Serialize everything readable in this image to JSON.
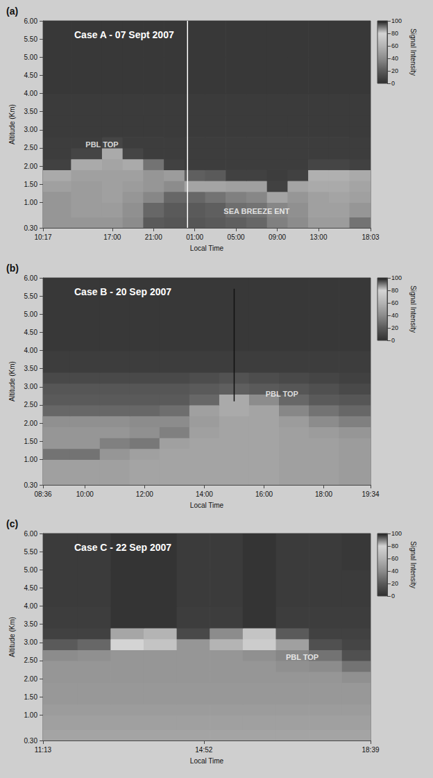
{
  "chart_data": [
    {
      "type": "heatmap",
      "panel_label": "(a)",
      "title": "Case A - 07 Sept 2007",
      "xlabel": "Local Time",
      "ylabel": "Altitude (Km)",
      "grid": false,
      "xlim": [
        10.2833,
        42.05
      ],
      "xticks": [
        {
          "value": 10.2833,
          "label": "10:17"
        },
        {
          "value": 17,
          "label": "17:00"
        },
        {
          "value": 21,
          "label": "21:00"
        },
        {
          "value": 25,
          "label": "01:00"
        },
        {
          "value": 29,
          "label": "05:00"
        },
        {
          "value": 33,
          "label": "09:00"
        },
        {
          "value": 37,
          "label": "13:00"
        },
        {
          "value": 42.05,
          "label": "18:03"
        }
      ],
      "ylim": [
        0.3,
        6.0
      ],
      "yticks": [
        {
          "value": 0.3,
          "label": "0.30"
        },
        {
          "value": 1,
          "label": "1.00"
        },
        {
          "value": 1.5,
          "label": "1.50"
        },
        {
          "value": 2,
          "label": "2.00"
        },
        {
          "value": 2.5,
          "label": "2.50"
        },
        {
          "value": 3,
          "label": "3.00"
        },
        {
          "value": 3.5,
          "label": "3.50"
        },
        {
          "value": 4,
          "label": "4.00"
        },
        {
          "value": 4.5,
          "label": "4.50"
        },
        {
          "value": 5,
          "label": "5.00"
        },
        {
          "value": 5.5,
          "label": "5.50"
        },
        {
          "value": 6,
          "label": "6.00"
        }
      ],
      "x_edges": [
        10.2833,
        13,
        16,
        18,
        20,
        22,
        24,
        26,
        28,
        30,
        32,
        34,
        36,
        38,
        40,
        42.05
      ],
      "y_edges": [
        0.3,
        0.6,
        1.0,
        1.3,
        1.6,
        1.9,
        2.2,
        2.5,
        2.8,
        3.1,
        3.4,
        4.0,
        5.0,
        6.0
      ],
      "cells": [
        [
          45,
          45,
          45,
          40,
          20,
          18,
          18,
          20,
          22,
          25,
          35,
          40,
          48,
          48,
          30
        ],
        [
          45,
          48,
          48,
          42,
          25,
          20,
          20,
          22,
          28,
          30,
          38,
          42,
          50,
          50,
          45
        ],
        [
          45,
          48,
          50,
          45,
          38,
          25,
          25,
          30,
          35,
          38,
          52,
          45,
          50,
          52,
          50
        ],
        [
          50,
          48,
          50,
          48,
          45,
          40,
          52,
          52,
          50,
          50,
          8,
          52,
          55,
          55,
          52
        ],
        [
          55,
          50,
          50,
          50,
          45,
          48,
          22,
          20,
          8,
          8,
          6,
          8,
          58,
          58,
          55
        ],
        [
          8,
          55,
          52,
          55,
          30,
          8,
          6,
          6,
          6,
          6,
          6,
          6,
          10,
          10,
          8
        ],
        [
          6,
          10,
          55,
          10,
          6,
          6,
          6,
          6,
          6,
          6,
          6,
          6,
          6,
          6,
          6
        ],
        [
          6,
          6,
          10,
          6,
          6,
          6,
          6,
          6,
          6,
          6,
          6,
          6,
          6,
          6,
          6
        ],
        [
          5,
          5,
          5,
          5,
          5,
          5,
          5,
          5,
          5,
          5,
          5,
          5,
          5,
          5,
          5
        ],
        [
          5,
          5,
          5,
          5,
          5,
          5,
          5,
          5,
          5,
          5,
          5,
          5,
          5,
          5,
          5
        ],
        [
          5,
          5,
          5,
          5,
          5,
          5,
          5,
          5,
          5,
          5,
          5,
          5,
          5,
          5,
          5
        ],
        [
          4,
          4,
          4,
          4,
          4,
          4,
          4,
          4,
          4,
          4,
          4,
          4,
          4,
          4,
          4
        ],
        [
          4,
          4,
          4,
          4,
          4,
          4,
          4,
          4,
          4,
          4,
          4,
          4,
          4,
          4,
          4
        ]
      ],
      "colorbar": {
        "title": "Signal Intensity",
        "range": [
          0,
          100
        ],
        "ticks": [
          0,
          20,
          40,
          60,
          80,
          100
        ],
        "colors": [
          "#303030",
          "#5a5a5a",
          "#8c8c8c",
          "#b4b4b4",
          "#d4d4d4",
          "#1c1c1c"
        ]
      },
      "annotations": [
        {
          "text": "PBL TOP",
          "x": 16,
          "y": 2.6
        },
        {
          "text": "SEA BREEZE ENT",
          "x": 31,
          "y": 0.75
        }
      ],
      "vlines": [
        {
          "x": 24.3,
          "y": [
            0.3,
            6.0
          ],
          "color": "#ffffff"
        }
      ]
    },
    {
      "type": "heatmap",
      "panel_label": "(b)",
      "title": "Case B - 20 Sep 2007",
      "xlabel": "Local Time",
      "ylabel": "Altitude (Km)",
      "grid": false,
      "xlim": [
        8.6,
        19.5667
      ],
      "xticks": [
        {
          "value": 8.6,
          "label": "08:36"
        },
        {
          "value": 10,
          "label": "10:00"
        },
        {
          "value": 12,
          "label": "12:00"
        },
        {
          "value": 14,
          "label": "14:00"
        },
        {
          "value": 16,
          "label": "16:00"
        },
        {
          "value": 18,
          "label": "18:00"
        },
        {
          "value": 19.5667,
          "label": "19:34"
        }
      ],
      "ylim": [
        0.3,
        6.0
      ],
      "yticks": [
        {
          "value": 0.3,
          "label": "0.30"
        },
        {
          "value": 1,
          "label": "1.00"
        },
        {
          "value": 1.5,
          "label": "1.50"
        },
        {
          "value": 2,
          "label": "2.00"
        },
        {
          "value": 2.5,
          "label": "2.50"
        },
        {
          "value": 3,
          "label": "3.00"
        },
        {
          "value": 3.5,
          "label": "3.50"
        },
        {
          "value": 4,
          "label": "4.00"
        },
        {
          "value": 4.5,
          "label": "4.50"
        },
        {
          "value": 5,
          "label": "5.00"
        },
        {
          "value": 5.5,
          "label": "5.50"
        },
        {
          "value": 6,
          "label": "6.00"
        }
      ],
      "x_edges": [
        8.6,
        9.5,
        10.5,
        11.5,
        12.5,
        13.5,
        14.5,
        15.5,
        16.5,
        17.5,
        18.5,
        19.5667
      ],
      "y_edges": [
        0.3,
        0.6,
        1.0,
        1.3,
        1.6,
        1.9,
        2.2,
        2.5,
        2.8,
        3.1,
        3.4,
        4.0,
        5.0,
        6.0
      ],
      "cells": [
        [
          50,
          50,
          50,
          52,
          52,
          52,
          52,
          52,
          50,
          50,
          48
        ],
        [
          50,
          50,
          50,
          52,
          52,
          52,
          52,
          52,
          50,
          50,
          48
        ],
        [
          30,
          30,
          45,
          50,
          52,
          52,
          52,
          52,
          50,
          50,
          48
        ],
        [
          45,
          45,
          35,
          32,
          50,
          52,
          52,
          52,
          50,
          50,
          48
        ],
        [
          45,
          45,
          45,
          42,
          35,
          50,
          52,
          52,
          50,
          48,
          45
        ],
        [
          42,
          42,
          42,
          40,
          40,
          48,
          52,
          52,
          48,
          40,
          35
        ],
        [
          25,
          25,
          25,
          25,
          28,
          50,
          55,
          52,
          38,
          30,
          25
        ],
        [
          20,
          20,
          20,
          20,
          20,
          25,
          55,
          40,
          25,
          20,
          18
        ],
        [
          18,
          18,
          18,
          18,
          18,
          20,
          22,
          20,
          18,
          15,
          12
        ],
        [
          12,
          12,
          12,
          12,
          12,
          14,
          16,
          14,
          12,
          10,
          8
        ],
        [
          6,
          6,
          6,
          6,
          6,
          6,
          6,
          6,
          6,
          6,
          6
        ],
        [
          4,
          4,
          4,
          4,
          4,
          4,
          4,
          4,
          4,
          4,
          4
        ],
        [
          4,
          4,
          4,
          4,
          4,
          4,
          4,
          4,
          4,
          4,
          4
        ]
      ],
      "colorbar": {
        "title": "Signal Intensity",
        "range": [
          0,
          100
        ],
        "ticks": [
          0,
          20,
          40,
          60,
          80,
          100
        ],
        "colors": [
          "#303030",
          "#5a5a5a",
          "#8c8c8c",
          "#b4b4b4",
          "#d4d4d4",
          "#1c1c1c"
        ]
      },
      "annotations": [
        {
          "text": "PBL TOP",
          "x": 16.6,
          "y": 2.8
        }
      ],
      "vlines": [
        {
          "x": 15.0,
          "y": [
            2.6,
            5.7
          ],
          "color": "#111111"
        }
      ]
    },
    {
      "type": "heatmap",
      "panel_label": "(c)",
      "title": "Case C - 22 Sep 2007",
      "xlabel": "Local Time",
      "ylabel": "Altitude (Km)",
      "grid": false,
      "xlim": [
        11.2167,
        18.65
      ],
      "xticks": [
        {
          "value": 11.2167,
          "label": "11:13"
        },
        {
          "value": 14.8667,
          "label": "14:52"
        },
        {
          "value": 18.65,
          "label": "18:39"
        }
      ],
      "ylim": [
        0.3,
        6.0
      ],
      "yticks": [
        {
          "value": 0.3,
          "label": "0.30"
        },
        {
          "value": 1,
          "label": "1.00"
        },
        {
          "value": 1.5,
          "label": "1.50"
        },
        {
          "value": 2,
          "label": "2.00"
        },
        {
          "value": 2.5,
          "label": "2.50"
        },
        {
          "value": 3,
          "label": "3.00"
        },
        {
          "value": 3.5,
          "label": "3.50"
        },
        {
          "value": 4,
          "label": "4.00"
        },
        {
          "value": 4.5,
          "label": "4.50"
        },
        {
          "value": 5,
          "label": "5.00"
        },
        {
          "value": 5.5,
          "label": "5.50"
        },
        {
          "value": 6,
          "label": "6.00"
        }
      ],
      "x_edges": [
        11.2167,
        12,
        12.75,
        13.5,
        14.25,
        15,
        15.75,
        16.5,
        17.25,
        18,
        18.65
      ],
      "y_edges": [
        0.3,
        0.6,
        1.0,
        1.3,
        1.6,
        1.9,
        2.2,
        2.5,
        2.8,
        3.1,
        3.4,
        4.0,
        5.0,
        6.0
      ],
      "cells": [
        [
          52,
          52,
          52,
          52,
          52,
          52,
          52,
          52,
          52,
          52
        ],
        [
          50,
          50,
          50,
          50,
          50,
          50,
          50,
          50,
          50,
          50
        ],
        [
          48,
          48,
          48,
          48,
          48,
          48,
          48,
          48,
          48,
          48
        ],
        [
          46,
          46,
          46,
          46,
          46,
          46,
          46,
          46,
          46,
          46
        ],
        [
          46,
          46,
          46,
          46,
          46,
          46,
          46,
          46,
          46,
          46
        ],
        [
          45,
          45,
          45,
          45,
          45,
          45,
          45,
          45,
          45,
          42
        ],
        [
          45,
          45,
          45,
          45,
          45,
          45,
          45,
          42,
          40,
          30
        ],
        [
          40,
          42,
          45,
          45,
          45,
          45,
          42,
          38,
          30,
          15
        ],
        [
          20,
          25,
          80,
          70,
          45,
          60,
          75,
          50,
          15,
          10
        ],
        [
          8,
          8,
          85,
          60,
          12,
          40,
          70,
          20,
          8,
          8
        ],
        [
          6,
          6,
          2,
          2,
          6,
          6,
          2,
          6,
          6,
          6
        ],
        [
          5,
          5,
          2,
          2,
          5,
          5,
          2,
          5,
          5,
          5
        ],
        [
          5,
          5,
          2,
          2,
          5,
          5,
          2,
          5,
          5,
          4
        ]
      ],
      "colorbar": {
        "title": "Signal Intensity",
        "range": [
          0,
          100
        ],
        "ticks": [
          0,
          20,
          40,
          60,
          80,
          100
        ],
        "colors": [
          "#303030",
          "#5a5a5a",
          "#8c8c8c",
          "#b4b4b4",
          "#d4d4d4",
          "#1c1c1c"
        ]
      },
      "annotations": [
        {
          "text": "PBL TOP",
          "x": 17.1,
          "y": 2.6
        }
      ],
      "vlines": []
    }
  ]
}
